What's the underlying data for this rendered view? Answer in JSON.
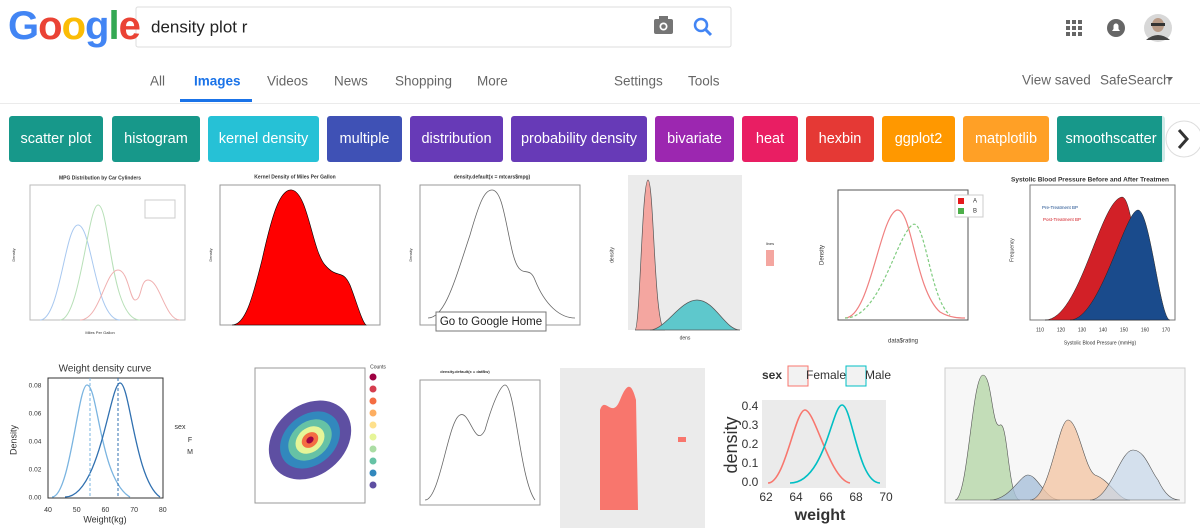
{
  "header": {
    "logo": "Google",
    "query": "density plot r"
  },
  "tabs": [
    "All",
    "Images",
    "Videos",
    "News",
    "Shopping",
    "More",
    "Settings",
    "Tools"
  ],
  "right_links": [
    "View saved",
    "SafeSearch"
  ],
  "chips": [
    "scatter plot",
    "histogram",
    "kernel density",
    "multiple",
    "distribution",
    "probability density",
    "bivariate",
    "heat",
    "hexbin",
    "ggplot2",
    "matplotlib",
    "smoothscatter"
  ],
  "tooltip": "Go to Google Home",
  "results": [
    {
      "title": "MPG Distribution by Car Cylinders",
      "ylabel": "Density",
      "xlabel": "Miles Per Gallon"
    },
    {
      "title": "Kernel Density of Miles Per Gallon",
      "ylabel": "Density"
    },
    {
      "title": "density.default(x = mtcars$mpg)",
      "ylabel": "Density"
    },
    {
      "ylabel": "density",
      "xlabel": "dens",
      "legend": [
        "lines"
      ]
    },
    {
      "ylabel": "Density",
      "xlabel": "data$rating",
      "legend": [
        "A",
        "B"
      ]
    },
    {
      "title": "Systolic Blood Pressure Before and After Treatmen",
      "ylabel": "Frequency",
      "xlabel": "Systolic Blood Pressure (mmHg)",
      "legend": [
        "Pre-Treatment BP",
        "Post-Treatment BP"
      ],
      "xticks": [
        "110",
        "120",
        "130",
        "140",
        "150",
        "160",
        "170"
      ]
    },
    {
      "title": "Weight density curve",
      "ylabel": "Density",
      "xlabel": "Weight(kg)",
      "legend": [
        "sex",
        "F",
        "M"
      ],
      "yticks": [
        "0.00",
        "0.02",
        "0.04",
        "0.06",
        "0.08"
      ],
      "xticks": [
        "40",
        "50",
        "60",
        "70",
        "80"
      ]
    },
    {
      "legend": [
        "Counts"
      ]
    },
    {
      "title": "density.default(x = datBw)"
    },
    {},
    {
      "ylabel": "density",
      "xlabel": "weight",
      "legend": [
        "sex",
        "Female",
        "Male"
      ],
      "yticks": [
        "0.0",
        "0.1",
        "0.2",
        "0.3",
        "0.4"
      ],
      "xticks": [
        "62",
        "64",
        "66",
        "68",
        "70"
      ]
    },
    {}
  ]
}
